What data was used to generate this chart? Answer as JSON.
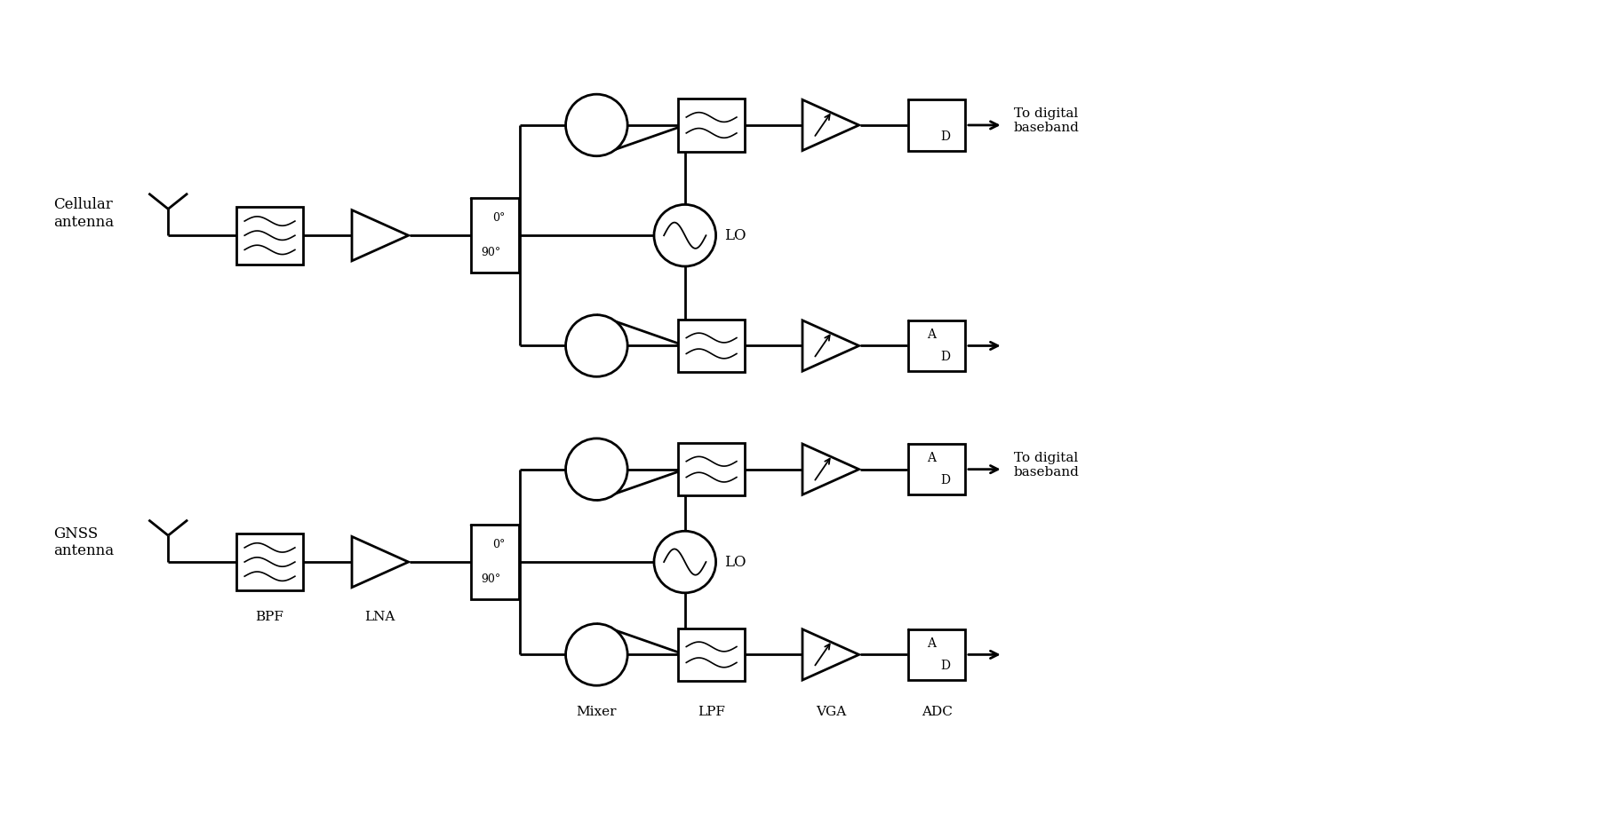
{
  "background_color": "#ffffff",
  "line_color": "#000000",
  "lw": 2.0,
  "cell_label": "Cellular\nantenna",
  "gnss_label": "GNSS\nantenna",
  "digital_bb_label": "To digital\nbaseband",
  "bpf_label": "BPF",
  "lna_label": "LNA",
  "mixer_label": "Mixer",
  "lpf_label": "LPF",
  "vga_label": "VGA",
  "adc_label": "ADC",
  "lo_label": "LO",
  "fig_w": 18.06,
  "fig_h": 9.44
}
